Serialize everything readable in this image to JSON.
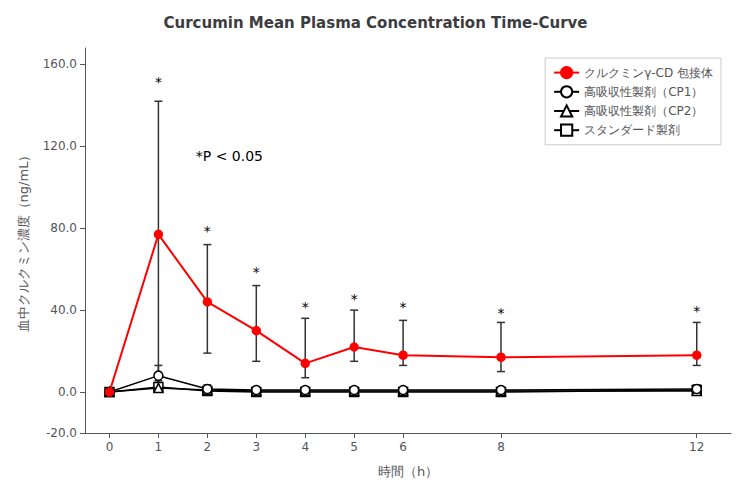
{
  "chart_data": {
    "type": "line",
    "title": "Curcumin Mean Plasma Concentration Time-Curve",
    "xlabel": "時間（h）",
    "ylabel": "血中クルクミン濃度（ng/mL）",
    "x": [
      0,
      1,
      2,
      3,
      4,
      5,
      6,
      8,
      12
    ],
    "series": [
      {
        "name": "クルクミンγ-CD 包接体",
        "color": "#ff0000",
        "marker": "circle",
        "values": [
          0.0,
          77.0,
          44.0,
          30.0,
          14.0,
          22.0,
          18.0,
          17.0,
          18.0
        ],
        "error_low": [
          0.0,
          77.0,
          25.0,
          15.0,
          7.0,
          7.0,
          5.0,
          7.0,
          5.0
        ],
        "error_high": [
          0.0,
          65.0,
          28.0,
          22.0,
          22.0,
          18.0,
          17.0,
          17.0,
          16.0
        ]
      },
      {
        "name": "高吸収性製剤（CP1）",
        "color": "#000000",
        "marker": "circle",
        "values": [
          0.0,
          8.0,
          1.5,
          1.0,
          1.0,
          1.0,
          1.0,
          1.0,
          1.5
        ],
        "error_low": [
          0.0,
          8.0,
          1.5,
          1.0,
          1.0,
          1.0,
          1.0,
          1.0,
          1.5
        ],
        "error_high": [
          0.0,
          5.0,
          2.0,
          1.5,
          1.5,
          1.5,
          1.5,
          1.5,
          2.0
        ]
      },
      {
        "name": "高吸収性製剤（CP2）",
        "color": "#000000",
        "marker": "triangle",
        "values": [
          0.0,
          2.0,
          1.0,
          0.5,
          0.5,
          0.5,
          0.5,
          0.5,
          0.5
        ],
        "error_low": [
          0.0,
          2.0,
          1.0,
          0.5,
          0.5,
          0.5,
          0.5,
          0.5,
          0.5
        ],
        "error_high": [
          0.0,
          2.5,
          1.5,
          1.0,
          1.0,
          1.0,
          1.0,
          1.0,
          1.0
        ]
      },
      {
        "name": "スタンダード製剤",
        "color": "#000000",
        "marker": "square",
        "values": [
          0.0,
          2.5,
          0.5,
          0.0,
          0.0,
          0.0,
          0.0,
          0.0,
          1.0
        ],
        "error_low": [
          0.0,
          2.5,
          0.5,
          0.0,
          0.0,
          0.0,
          0.0,
          0.0,
          1.0
        ],
        "error_high": [
          0.0,
          3.0,
          1.0,
          0.5,
          0.5,
          0.5,
          0.5,
          0.5,
          1.5
        ]
      }
    ],
    "annotations": [
      {
        "text": "*",
        "x": 1,
        "y": 148
      },
      {
        "text": "*",
        "x": 2,
        "y": 75
      },
      {
        "text": "*",
        "x": 3,
        "y": 55
      },
      {
        "text": "*",
        "x": 4,
        "y": 38
      },
      {
        "text": "*",
        "x": 5,
        "y": 42
      },
      {
        "text": "*",
        "x": 6,
        "y": 38
      },
      {
        "text": "*",
        "x": 8,
        "y": 35
      },
      {
        "text": "*",
        "x": 12,
        "y": 36
      },
      {
        "text": "*P < 0.05",
        "x": 2.45,
        "y": 112
      }
    ],
    "xlim": [
      -0.5,
      12.7
    ],
    "xticks": [
      0,
      1,
      2,
      3,
      4,
      5,
      6,
      8,
      12
    ],
    "ylim": [
      -20.0,
      168.0
    ],
    "yticks": [
      {
        "value": -20.0,
        "label": "-20.0"
      },
      {
        "value": 0.0,
        "label": "0.0"
      },
      {
        "value": 40.0,
        "label": "40.0"
      },
      {
        "value": 80.0,
        "label": "80.0"
      },
      {
        "value": 120.0,
        "label": "120.0"
      },
      {
        "value": 160.0,
        "label": "160.0"
      }
    ],
    "grid": false,
    "legend": "upper right"
  }
}
